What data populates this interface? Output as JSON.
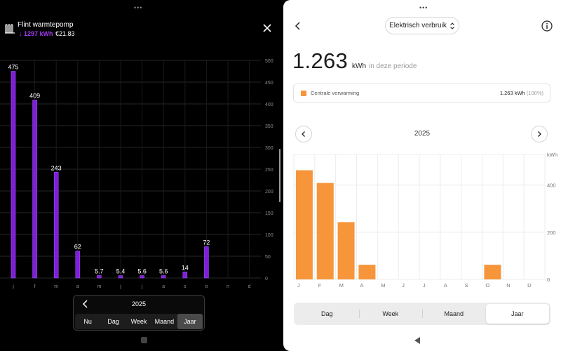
{
  "left": {
    "device": {
      "name": "Flint warmtepomp",
      "kwh": "↓ 1297 kWh",
      "cost": "€21.83",
      "icon": "heat-pump-icon"
    },
    "close_icon": "close-icon",
    "chart_data": {
      "type": "bar",
      "categories": [
        "j",
        "f",
        "m",
        "a",
        "m",
        "j",
        "j",
        "a",
        "s",
        "o",
        "n",
        "d"
      ],
      "values": [
        475,
        409,
        243,
        62,
        5.7,
        5.4,
        5.6,
        5.6,
        14,
        72,
        null,
        null
      ],
      "value_labels": [
        "475",
        "409",
        "243",
        "62",
        "5.7",
        "5.4",
        "5.6",
        "5.6",
        "14",
        "72",
        "",
        ""
      ],
      "yticks": [
        0,
        50,
        100,
        150,
        200,
        250,
        300,
        350,
        400,
        450,
        500
      ],
      "ylim": [
        0,
        500
      ],
      "grid": true,
      "colors": {
        "bar": "#7d1fd8",
        "bar_edge": "#a24bf2",
        "grid": "#262626",
        "text": "#ffffff",
        "tick": "#8c8c8c"
      }
    },
    "period": {
      "year": "2025",
      "tabs": [
        {
          "label": "Nu",
          "active": false
        },
        {
          "label": "Dag",
          "active": false
        },
        {
          "label": "Week",
          "active": false
        },
        {
          "label": "Maand",
          "active": false
        },
        {
          "label": "Jaar",
          "active": true
        }
      ]
    }
  },
  "right": {
    "metric_select": "Elektrisch verbruik",
    "total": {
      "value": "1.263",
      "unit": "kWh",
      "suffix": "in deze periode"
    },
    "legend": {
      "label": "Centrale verwarming",
      "value": "1.263 kWh",
      "pct": "(100%)",
      "color": "#f7953b"
    },
    "year": "2025",
    "chart_data": {
      "type": "bar",
      "categories": [
        "J",
        "F",
        "M",
        "A",
        "M",
        "J",
        "J",
        "A",
        "S",
        "O",
        "N",
        "D"
      ],
      "values": [
        463,
        409,
        243,
        62,
        0,
        0,
        0,
        0,
        0,
        62,
        0,
        0
      ],
      "ylabel": "kWh",
      "yticks": [
        0,
        200,
        400
      ],
      "ylim": [
        0,
        530
      ],
      "grid": true,
      "colors": {
        "bar": "#f7953b",
        "grid": "#ececec",
        "text": "#777777"
      }
    },
    "tabs": [
      {
        "label": "Dag",
        "active": false
      },
      {
        "label": "Week",
        "active": false
      },
      {
        "label": "Maand",
        "active": false
      },
      {
        "label": "Jaar",
        "active": true
      }
    ]
  }
}
